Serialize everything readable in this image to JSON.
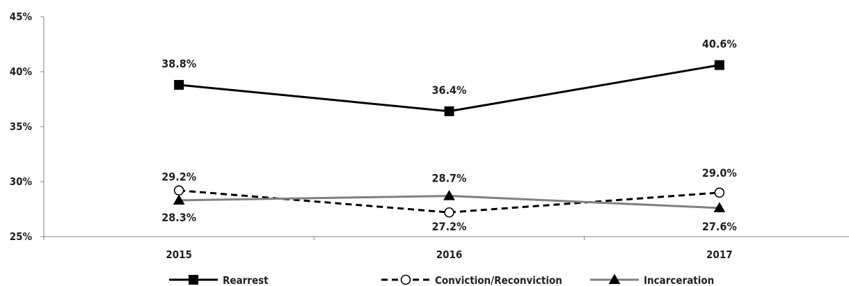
{
  "chart_data": {
    "type": "line",
    "categories": [
      "2015",
      "2016",
      "2017"
    ],
    "ylim": [
      25,
      45
    ],
    "yticks": [
      "25%",
      "30%",
      "35%",
      "40%",
      "45%"
    ],
    "ytick_values": [
      25,
      30,
      35,
      40,
      45
    ],
    "grid": false,
    "legend_placement": "bottom",
    "series": [
      {
        "name": "Rearrest",
        "values": [
          38.8,
          36.4,
          40.6
        ],
        "labels": [
          "38.8%",
          "36.4%",
          "40.6%"
        ],
        "color": "#000000",
        "line": "solid",
        "marker": "filled-square"
      },
      {
        "name": "Conviction/Reconviction",
        "values": [
          29.2,
          27.2,
          29.0
        ],
        "labels": [
          "29.2%",
          "27.2%",
          "29.0%"
        ],
        "color": "#000000",
        "line": "dashed",
        "marker": "open-circle"
      },
      {
        "name": "Incarceration",
        "values": [
          28.3,
          28.7,
          27.6
        ],
        "labels": [
          "28.3%",
          "28.7%",
          "27.6%"
        ],
        "color": "#808080",
        "line": "solid",
        "marker": "filled-triangle"
      }
    ]
  }
}
